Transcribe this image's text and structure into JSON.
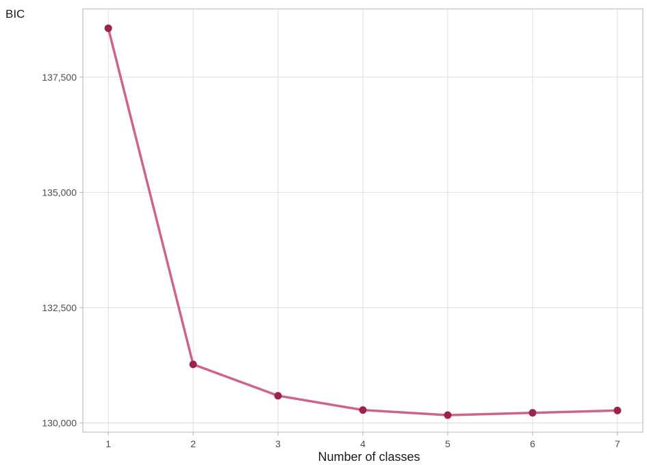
{
  "chart_data": {
    "type": "line",
    "title": "",
    "xlabel": "Number of classes",
    "ylabel": "BIC",
    "x": [
      1,
      2,
      3,
      4,
      5,
      6,
      7
    ],
    "series": [
      {
        "values": [
          138560,
          131270,
          130590,
          130280,
          130170,
          130220,
          130270
        ]
      }
    ],
    "xlim": [
      0.7,
      7.3
    ],
    "ylim": [
      129800,
      138980
    ],
    "x_ticks": [
      1,
      2,
      3,
      4,
      5,
      6,
      7
    ],
    "x_tick_labels": [
      "1",
      "2",
      "3",
      "4",
      "5",
      "6",
      "7"
    ],
    "y_ticks": [
      130000,
      132500,
      135000,
      137500
    ],
    "y_tick_labels": [
      "130,000",
      "132,500",
      "135,000",
      "137,500"
    ],
    "grid": true,
    "legend": "none",
    "colors": {
      "line": "#d0628e",
      "point": "#9b2350",
      "grid": "#dedede",
      "border": "#b3b3b3"
    }
  }
}
